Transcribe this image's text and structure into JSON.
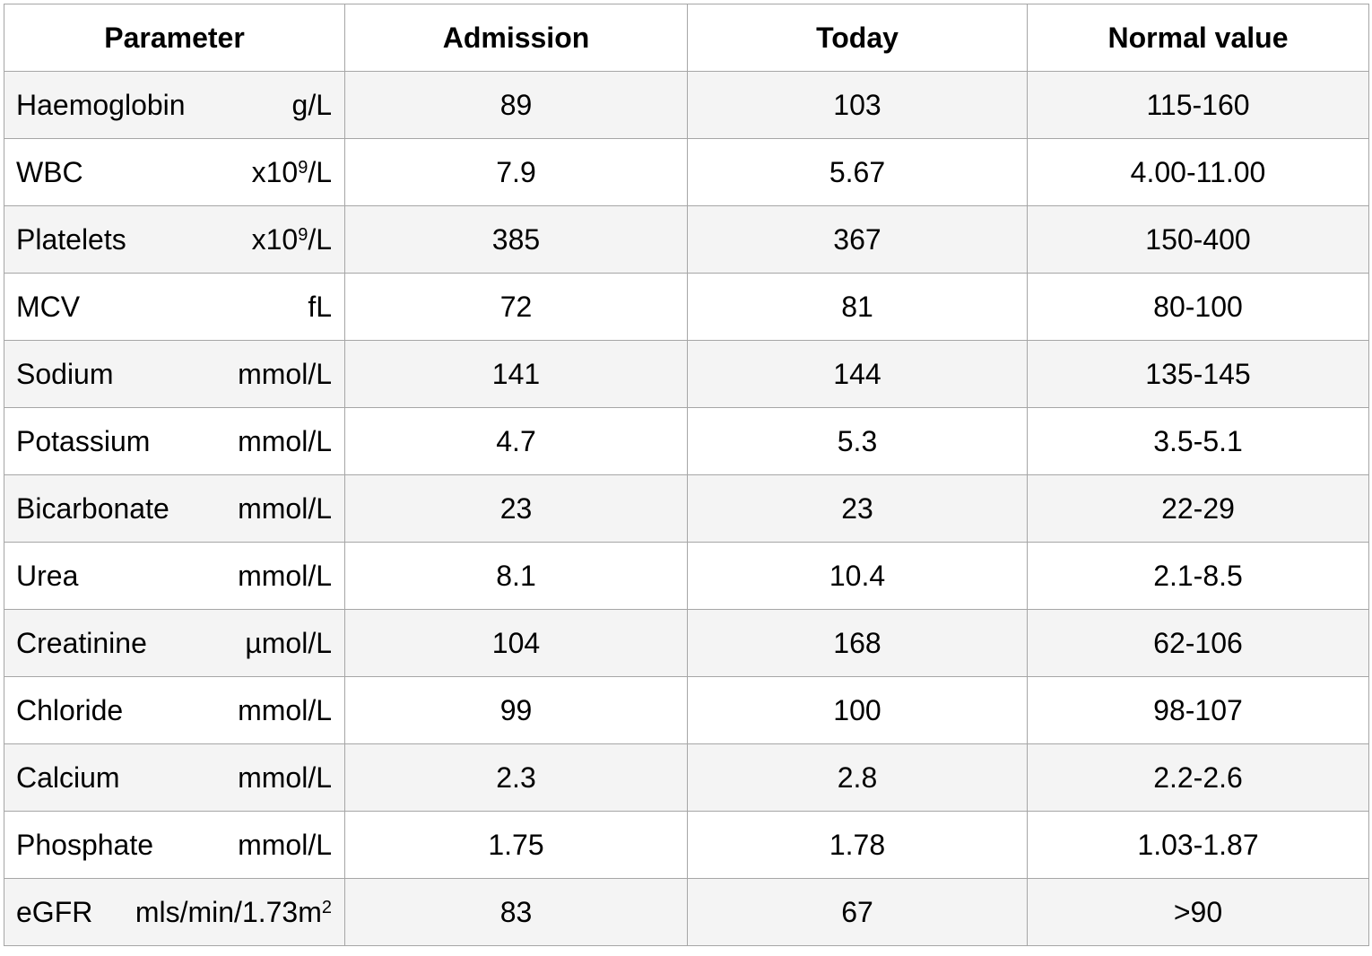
{
  "headers": [
    "Parameter",
    "Admission",
    "Today",
    "Normal value"
  ],
  "rows": [
    {
      "name": "Haemoglobin",
      "unit": "g/L",
      "unit_sup": "",
      "unit_after": "",
      "admission": "89",
      "today": "103",
      "normal": "115-160"
    },
    {
      "name": "WBC",
      "unit": "x10",
      "unit_sup": "9",
      "unit_after": "/L",
      "admission": "7.9",
      "today": "5.67",
      "normal": "4.00-11.00"
    },
    {
      "name": "Platelets",
      "unit": "x10",
      "unit_sup": "9",
      "unit_after": "/L",
      "admission": "385",
      "today": "367",
      "normal": "150-400"
    },
    {
      "name": "MCV",
      "unit": "fL",
      "unit_sup": "",
      "unit_after": "",
      "admission": "72",
      "today": "81",
      "normal": "80-100"
    },
    {
      "name": "Sodium",
      "unit": "mmol/L",
      "unit_sup": "",
      "unit_after": "",
      "admission": "141",
      "today": "144",
      "normal": "135-145"
    },
    {
      "name": "Potassium",
      "unit": "mmol/L",
      "unit_sup": "",
      "unit_after": "",
      "admission": "4.7",
      "today": "5.3",
      "normal": "3.5-5.1"
    },
    {
      "name": "Bicarbonate",
      "unit": "mmol/L",
      "unit_sup": "",
      "unit_after": "",
      "admission": "23",
      "today": "23",
      "normal": "22-29"
    },
    {
      "name": "Urea",
      "unit": "mmol/L",
      "unit_sup": "",
      "unit_after": "",
      "admission": "8.1",
      "today": "10.4",
      "normal": "2.1-8.5"
    },
    {
      "name": "Creatinine",
      "unit": "µmol/L",
      "unit_sup": "",
      "unit_after": "",
      "admission": "104",
      "today": "168",
      "normal": "62-106"
    },
    {
      "name": "Chloride",
      "unit": "mmol/L",
      "unit_sup": "",
      "unit_after": "",
      "admission": "99",
      "today": "100",
      "normal": "98-107"
    },
    {
      "name": "Calcium",
      "unit": "mmol/L",
      "unit_sup": "",
      "unit_after": "",
      "admission": "2.3",
      "today": "2.8",
      "normal": "2.2-2.6"
    },
    {
      "name": "Phosphate",
      "unit": "mmol/L",
      "unit_sup": "",
      "unit_after": "",
      "admission": "1.75",
      "today": "1.78",
      "normal": "1.03-1.87"
    },
    {
      "name": "eGFR",
      "unit": "mls/min/1.73m",
      "unit_sup": "2",
      "unit_after": "",
      "admission": "83",
      "today": "67",
      "normal": ">90"
    }
  ]
}
